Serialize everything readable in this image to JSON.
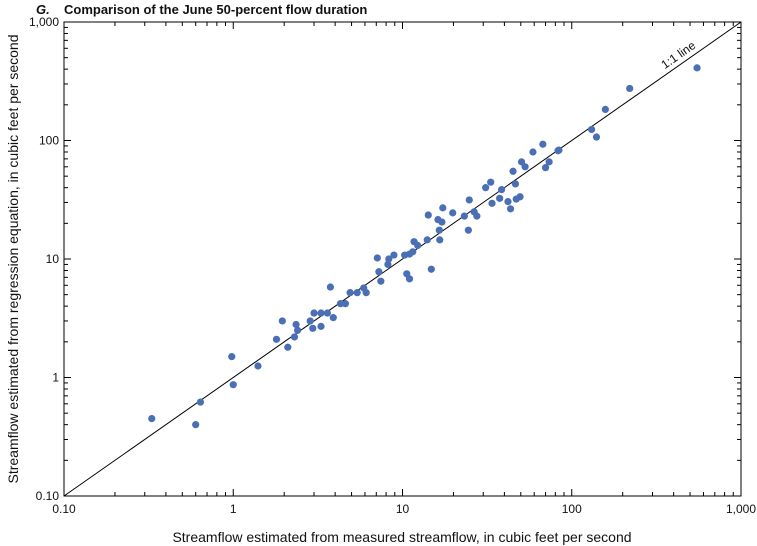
{
  "chart_data": {
    "type": "scatter",
    "panel_letter": "G.",
    "title": "Comparison of the June 50-percent flow duration",
    "xlabel": "Streamflow estimated from measured streamflow, in cubic feet per second",
    "ylabel": "Streamflow estimated from regression equation, in cubic feet per second",
    "xscale": "log",
    "yscale": "log",
    "xlim": [
      0.1,
      1000
    ],
    "ylim": [
      0.1,
      1000
    ],
    "x_ticks": [
      0.1,
      1,
      10,
      100,
      1000
    ],
    "x_tick_labels": [
      "0.10",
      "1",
      "10",
      "100",
      "1,000"
    ],
    "y_ticks": [
      0.1,
      1,
      10,
      100,
      1000
    ],
    "y_tick_labels": [
      "0.10",
      "1",
      "10",
      "100",
      "1,000"
    ],
    "grid": false,
    "point_color": "#4a6fb5",
    "reference_line": {
      "label": "1:1 line",
      "from": [
        0.1,
        0.1
      ],
      "to": [
        1000,
        1000
      ]
    },
    "points": [
      [
        0.33,
        0.45
      ],
      [
        0.6,
        0.4
      ],
      [
        0.64,
        0.62
      ],
      [
        0.98,
        1.5
      ],
      [
        1.0,
        0.87
      ],
      [
        1.4,
        1.25
      ],
      [
        1.8,
        2.1
      ],
      [
        1.95,
        3.0
      ],
      [
        2.1,
        1.8
      ],
      [
        2.3,
        2.2
      ],
      [
        2.35,
        2.8
      ],
      [
        2.4,
        2.5
      ],
      [
        2.85,
        3.0
      ],
      [
        2.95,
        2.6
      ],
      [
        3.0,
        3.5
      ],
      [
        3.3,
        3.5
      ],
      [
        3.3,
        2.7
      ],
      [
        3.6,
        3.5
      ],
      [
        3.75,
        5.8
      ],
      [
        3.9,
        3.2
      ],
      [
        4.3,
        4.2
      ],
      [
        4.6,
        4.2
      ],
      [
        4.9,
        5.2
      ],
      [
        5.4,
        5.2
      ],
      [
        5.9,
        5.7
      ],
      [
        6.1,
        5.2
      ],
      [
        7.1,
        10.2
      ],
      [
        7.25,
        7.8
      ],
      [
        7.45,
        6.5
      ],
      [
        8.2,
        9.0
      ],
      [
        8.3,
        10.0
      ],
      [
        8.9,
        10.8
      ],
      [
        10.3,
        10.8
      ],
      [
        10.6,
        7.5
      ],
      [
        11.0,
        6.8
      ],
      [
        11.0,
        11.0
      ],
      [
        11.5,
        11.5
      ],
      [
        11.7,
        14.0
      ],
      [
        12.3,
        13.0
      ],
      [
        14.0,
        14.5
      ],
      [
        14.2,
        23.5
      ],
      [
        14.8,
        8.2
      ],
      [
        16.2,
        21.5
      ],
      [
        16.5,
        17.5
      ],
      [
        16.6,
        14.5
      ],
      [
        17.1,
        20.5
      ],
      [
        17.3,
        27.0
      ],
      [
        19.8,
        24.5
      ],
      [
        23.2,
        23.0
      ],
      [
        24.5,
        17.5
      ],
      [
        24.8,
        31.5
      ],
      [
        26.5,
        25.0
      ],
      [
        27.5,
        23.0
      ],
      [
        31.0,
        40.0
      ],
      [
        33.2,
        44.5
      ],
      [
        33.8,
        29.5
      ],
      [
        37.5,
        32.5
      ],
      [
        38.5,
        38.5
      ],
      [
        42.0,
        30.5
      ],
      [
        43.5,
        26.5
      ],
      [
        45.0,
        55.0
      ],
      [
        46.5,
        43.0
      ],
      [
        47.0,
        32.0
      ],
      [
        49.5,
        33.5
      ],
      [
        50.5,
        66.0
      ],
      [
        53.0,
        60.0
      ],
      [
        59.0,
        80.0
      ],
      [
        67.5,
        93.0
      ],
      [
        70.0,
        59.0
      ],
      [
        73.5,
        66.0
      ],
      [
        83.0,
        82.0
      ],
      [
        84.0,
        83.0
      ],
      [
        131.0,
        124.0
      ],
      [
        140.0,
        107.0
      ],
      [
        158.0,
        183.0
      ],
      [
        220.0,
        275.0
      ],
      [
        550.0,
        410.0
      ]
    ]
  }
}
